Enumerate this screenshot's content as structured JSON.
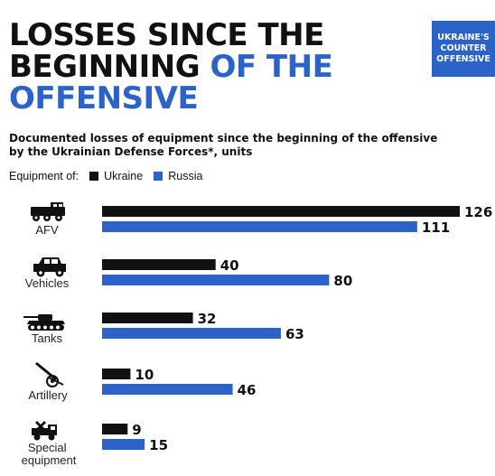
{
  "title": {
    "line1": "LOSSES SINCE THE",
    "line2a": "BEGINNING",
    "line2b": "OF THE",
    "line3": "OFFENSIVE"
  },
  "badge": {
    "line1": "UKRAINE'S",
    "line2": "COUNTER",
    "line3": "OFFENSIVE"
  },
  "subtitle": {
    "line1": "Documented losses of equipment since the beginning of the offensive",
    "line2": "by the Ukrainian Defense Forces*, units"
  },
  "legend": {
    "prefix": "Equipment of:"
  },
  "colors": {
    "ukraine": "#111111",
    "russia": "#2b63c8",
    "accent": "#2b63c8"
  },
  "chart_data": {
    "type": "bar",
    "orientation": "horizontal",
    "categories": [
      "AFV",
      "Vehicles",
      "Tanks",
      "Artillery",
      "Special equipment"
    ],
    "category_icons": [
      "armored-vehicle-icon",
      "jeep-icon",
      "tank-icon",
      "artillery-icon",
      "special-equipment-icon"
    ],
    "series": [
      {
        "name": "Ukraine",
        "values": [
          126,
          40,
          32,
          10,
          9
        ]
      },
      {
        "name": "Russia",
        "values": [
          111,
          80,
          63,
          46,
          15
        ]
      }
    ],
    "grid": false,
    "legend_position": "top-left"
  }
}
